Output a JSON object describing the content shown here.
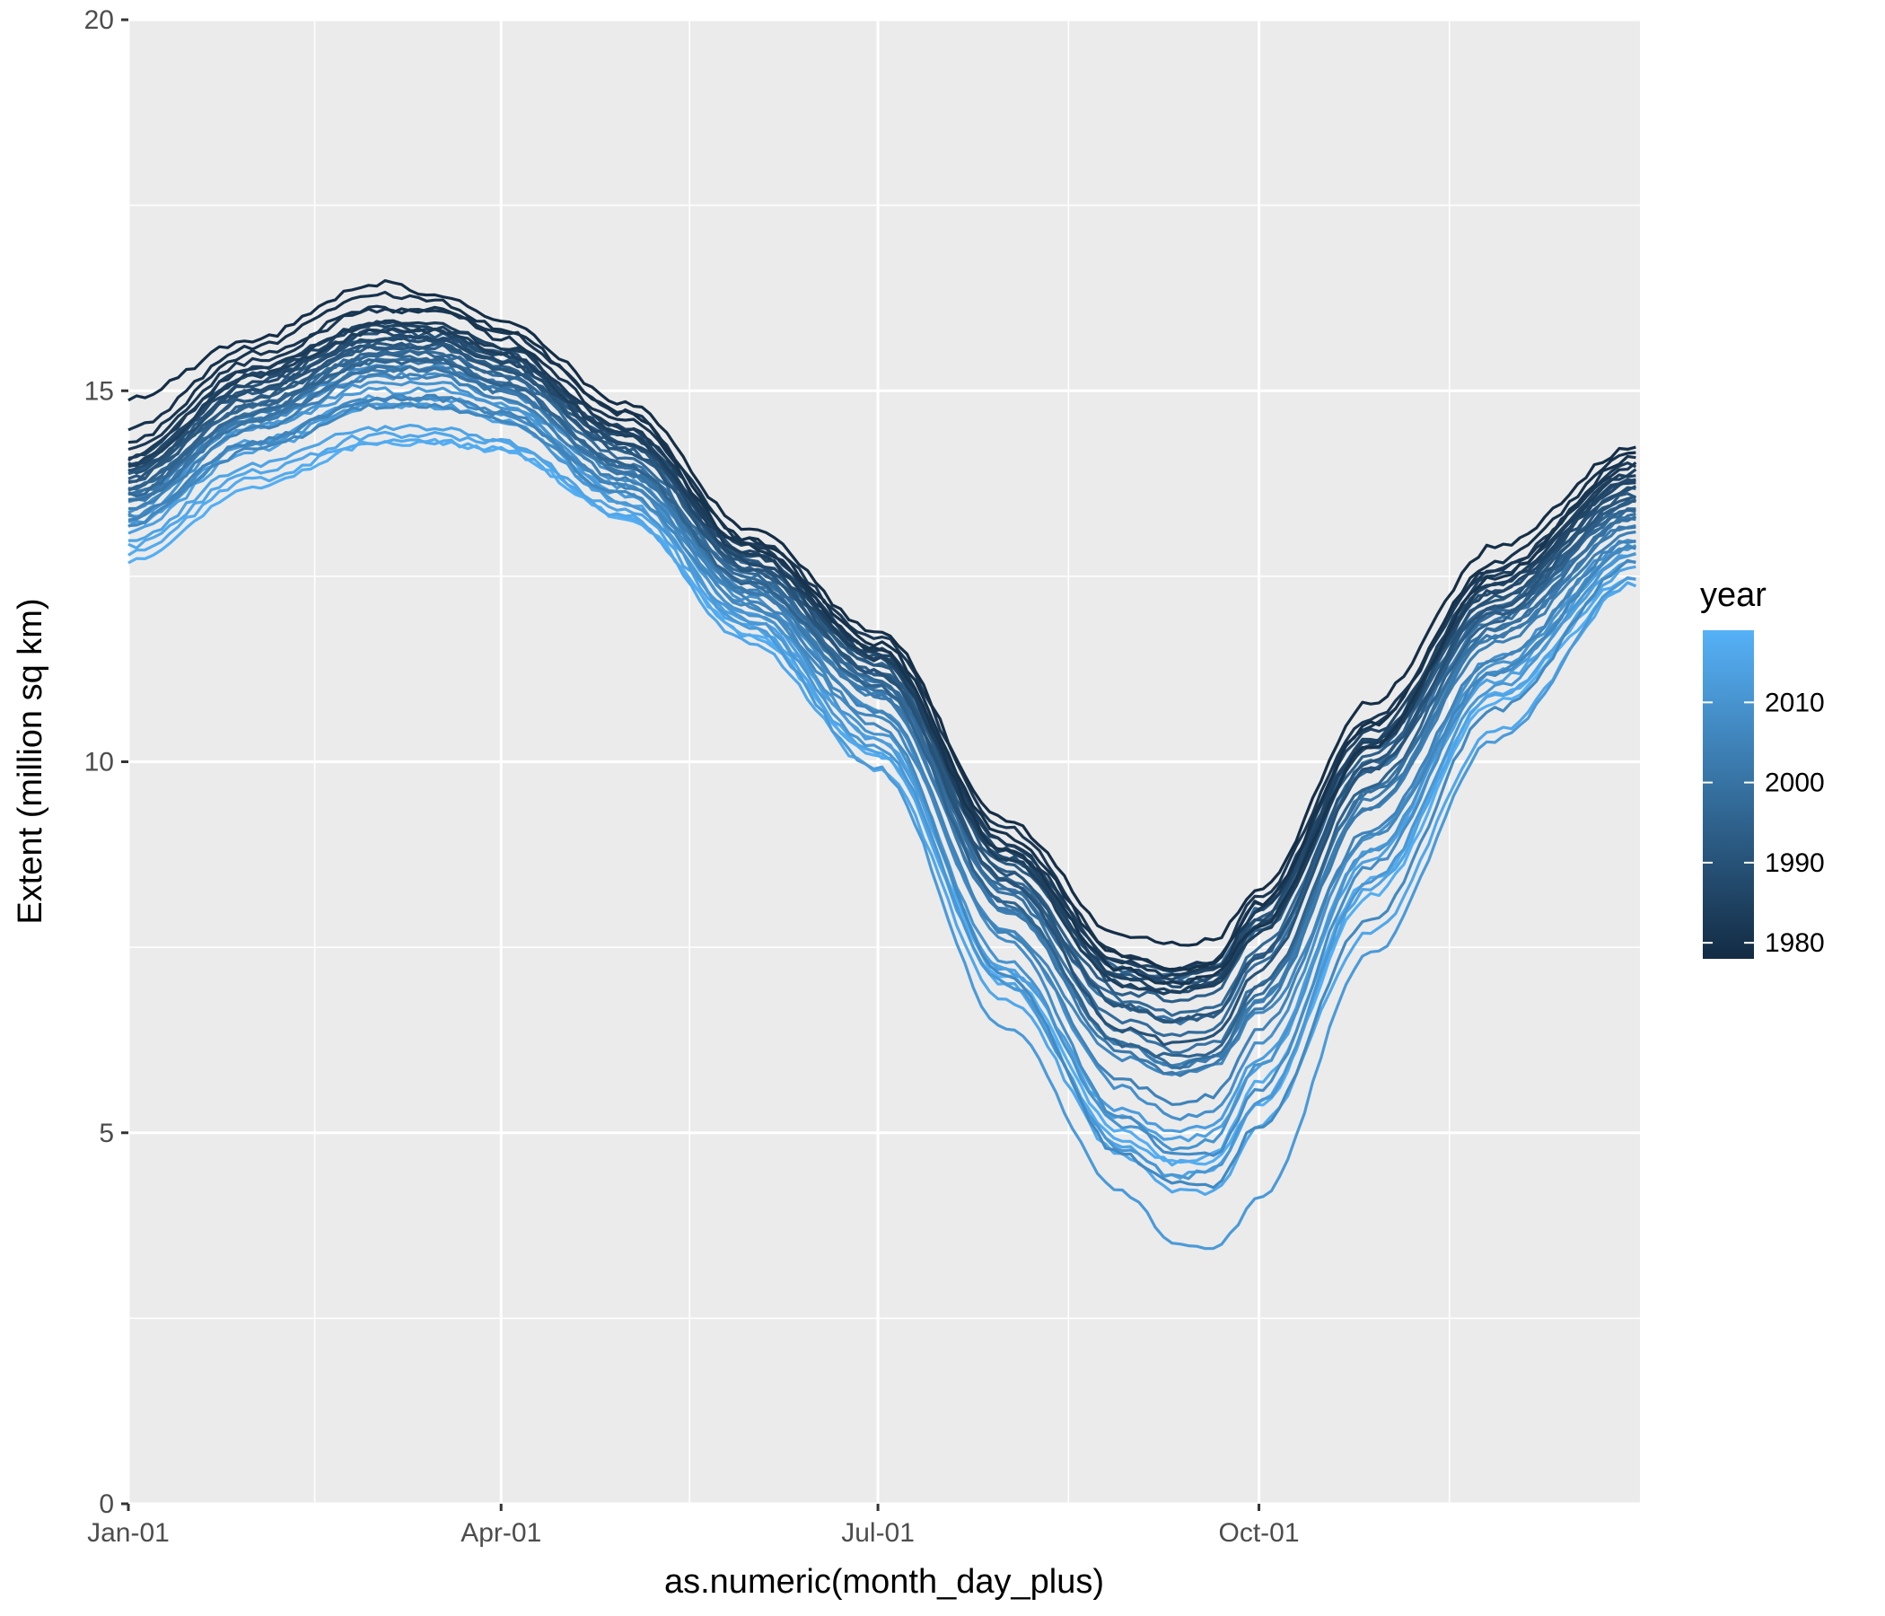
{
  "chart_data": {
    "type": "line",
    "xlabel": "as.numeric(month_day_plus)",
    "ylabel": "Extent (million sq km)",
    "xlim": [
      0,
      365
    ],
    "ylim": [
      0,
      20
    ],
    "x_ticks": [
      {
        "value": 0,
        "label": "Jan-01"
      },
      {
        "value": 90,
        "label": "Apr-01"
      },
      {
        "value": 181,
        "label": "Jul-01"
      },
      {
        "value": 273,
        "label": "Oct-01"
      }
    ],
    "x_minor_ticks": [
      45,
      135.5,
      227,
      319
    ],
    "y_ticks": [
      {
        "value": 0,
        "label": "0"
      },
      {
        "value": 5,
        "label": "5"
      },
      {
        "value": 10,
        "label": "10"
      },
      {
        "value": 15,
        "label": "15"
      },
      {
        "value": 20,
        "label": "20"
      }
    ],
    "y_minor_ticks": [
      2.5,
      7.5,
      12.5,
      17.5
    ],
    "grid": true,
    "legend": {
      "title": "year",
      "position": "right",
      "type": "colorbar",
      "range": [
        1978,
        2019
      ],
      "breaks": [
        {
          "value": 1980,
          "label": "1980"
        },
        {
          "value": 1990,
          "label": "1990"
        },
        {
          "value": 2000,
          "label": "2000"
        },
        {
          "value": 2010,
          "label": "2010"
        }
      ],
      "color_low": "#132B43",
      "color_high": "#56B1F7"
    },
    "colors": {
      "panel_background": "#EBEBEB",
      "grid": "#FFFFFF",
      "tick_text": "#4D4D4D"
    },
    "x_day_points": [
      0,
      30,
      60,
      75,
      90,
      120,
      150,
      181,
      212,
      240,
      253,
      262,
      273,
      300,
      330,
      364
    ],
    "series": [
      {
        "year": 1979,
        "values": [
          14.9,
          15.7,
          16.45,
          16.3,
          15.95,
          14.85,
          13.15,
          11.75,
          9.2,
          7.65,
          7.55,
          7.6,
          8.3,
          10.8,
          12.9,
          14.25
        ]
      },
      {
        "year": 1980,
        "values": [
          14.5,
          15.6,
          16.3,
          16.2,
          15.85,
          14.7,
          13.0,
          11.6,
          9.0,
          7.4,
          7.2,
          7.3,
          8.1,
          10.5,
          12.7,
          14.15
        ]
      },
      {
        "year": 1981,
        "values": [
          14.3,
          15.5,
          16.1,
          16.1,
          15.7,
          14.6,
          12.9,
          11.5,
          8.8,
          7.2,
          7.0,
          7.1,
          7.8,
          10.2,
          12.5,
          14.1
        ]
      },
      {
        "year": 1982,
        "values": [
          14.2,
          15.4,
          16.1,
          16.05,
          15.8,
          14.7,
          13.0,
          11.7,
          9.1,
          7.4,
          7.2,
          7.3,
          8.2,
          10.6,
          12.6,
          14.0
        ]
      },
      {
        "year": 1983,
        "values": [
          14.1,
          15.3,
          15.9,
          15.9,
          15.6,
          14.5,
          12.9,
          11.5,
          8.9,
          7.3,
          7.1,
          7.2,
          8.0,
          10.5,
          12.6,
          14.0
        ]
      },
      {
        "year": 1984,
        "values": [
          14.0,
          15.2,
          15.8,
          15.8,
          15.5,
          14.4,
          12.8,
          11.4,
          8.7,
          7.0,
          6.9,
          7.0,
          7.7,
          10.2,
          12.4,
          13.9
        ]
      },
      {
        "year": 1985,
        "values": [
          14.1,
          15.3,
          15.9,
          15.85,
          15.6,
          14.5,
          12.9,
          11.5,
          8.8,
          7.1,
          6.9,
          7.0,
          7.8,
          10.3,
          12.5,
          13.9
        ]
      },
      {
        "year": 1986,
        "values": [
          14.0,
          15.2,
          15.9,
          15.8,
          15.5,
          14.4,
          12.8,
          11.45,
          8.9,
          7.3,
          7.2,
          7.3,
          8.1,
          10.4,
          12.4,
          13.8
        ]
      },
      {
        "year": 1987,
        "values": [
          14.0,
          15.1,
          15.8,
          15.7,
          15.4,
          14.3,
          12.7,
          11.4,
          8.8,
          7.2,
          7.1,
          7.2,
          8.0,
          10.3,
          12.3,
          13.8
        ]
      },
      {
        "year": 1988,
        "values": [
          14.0,
          15.2,
          15.7,
          15.7,
          15.4,
          14.4,
          12.8,
          11.4,
          8.7,
          7.1,
          7.0,
          7.1,
          7.9,
          10.3,
          12.4,
          13.8
        ]
      },
      {
        "year": 1989,
        "values": [
          13.9,
          15.0,
          15.7,
          15.7,
          15.5,
          14.4,
          12.8,
          11.4,
          8.7,
          7.0,
          6.9,
          7.0,
          7.8,
          10.2,
          12.3,
          13.7
        ]
      },
      {
        "year": 1990,
        "values": [
          13.9,
          15.1,
          15.8,
          15.75,
          15.5,
          14.3,
          12.7,
          11.2,
          8.4,
          6.4,
          6.2,
          6.3,
          7.2,
          9.9,
          12.2,
          13.7
        ]
      },
      {
        "year": 1991,
        "values": [
          13.8,
          15.0,
          15.6,
          15.6,
          15.3,
          14.2,
          12.6,
          11.2,
          8.5,
          6.7,
          6.5,
          6.6,
          7.4,
          10.0,
          12.1,
          13.6
        ]
      },
      {
        "year": 1992,
        "values": [
          13.8,
          14.9,
          15.6,
          15.6,
          15.3,
          14.3,
          12.7,
          11.3,
          8.6,
          7.1,
          7.0,
          7.1,
          7.9,
          10.2,
          12.2,
          13.6
        ]
      },
      {
        "year": 1993,
        "values": [
          13.9,
          15.0,
          15.7,
          15.7,
          15.4,
          14.3,
          12.6,
          11.2,
          8.4,
          6.7,
          6.5,
          6.6,
          7.4,
          9.9,
          12.0,
          13.5
        ]
      },
      {
        "year": 1994,
        "values": [
          13.8,
          14.9,
          15.6,
          15.6,
          15.3,
          14.2,
          12.6,
          11.2,
          8.5,
          6.9,
          6.8,
          6.9,
          7.7,
          10.1,
          12.1,
          13.5
        ]
      },
      {
        "year": 1995,
        "values": [
          13.7,
          14.8,
          15.4,
          15.4,
          15.1,
          14.0,
          12.4,
          11.0,
          8.1,
          6.2,
          6.0,
          6.1,
          7.0,
          9.7,
          11.9,
          13.5
        ]
      },
      {
        "year": 1996,
        "values": [
          13.7,
          14.8,
          15.5,
          15.5,
          15.2,
          14.2,
          12.7,
          11.3,
          8.7,
          7.2,
          7.1,
          7.2,
          8.0,
          10.2,
          12.1,
          13.4
        ]
      },
      {
        "year": 1997,
        "values": [
          13.6,
          14.7,
          15.5,
          15.4,
          15.1,
          14.0,
          12.5,
          11.1,
          8.4,
          6.8,
          6.6,
          6.7,
          7.5,
          10.0,
          12.0,
          13.4
        ]
      },
      {
        "year": 1998,
        "values": [
          13.7,
          14.8,
          15.5,
          15.5,
          15.2,
          14.1,
          12.5,
          11.1,
          8.3,
          6.5,
          6.3,
          6.4,
          7.3,
          9.9,
          12.0,
          13.4
        ]
      },
      {
        "year": 1999,
        "values": [
          13.6,
          14.7,
          15.4,
          15.4,
          15.1,
          14.0,
          12.4,
          11.0,
          8.1,
          6.2,
          5.9,
          6.0,
          6.9,
          9.6,
          11.8,
          13.3
        ]
      },
      {
        "year": 2000,
        "values": [
          13.5,
          14.6,
          15.3,
          15.3,
          15.0,
          13.9,
          12.4,
          11.0,
          8.2,
          6.4,
          6.1,
          6.2,
          7.0,
          9.6,
          11.8,
          13.3
        ]
      },
      {
        "year": 2001,
        "values": [
          13.6,
          14.7,
          15.4,
          15.4,
          15.1,
          14.0,
          12.5,
          11.1,
          8.3,
          6.7,
          6.5,
          6.6,
          7.4,
          9.9,
          11.9,
          13.3
        ]
      },
      {
        "year": 2002,
        "values": [
          13.5,
          14.6,
          15.3,
          15.3,
          15.0,
          13.9,
          12.3,
          10.9,
          8.0,
          6.1,
          5.8,
          5.9,
          6.7,
          9.4,
          11.7,
          13.2
        ]
      },
      {
        "year": 2003,
        "values": [
          13.5,
          14.6,
          15.3,
          15.3,
          15.0,
          13.9,
          12.3,
          10.9,
          8.0,
          6.2,
          5.9,
          6.0,
          6.8,
          9.5,
          11.7,
          13.2
        ]
      },
      {
        "year": 2004,
        "values": [
          13.4,
          14.5,
          15.2,
          15.2,
          14.9,
          13.8,
          12.3,
          10.9,
          8.0,
          6.2,
          5.9,
          6.0,
          6.8,
          9.4,
          11.6,
          13.1
        ]
      },
      {
        "year": 2005,
        "values": [
          13.3,
          14.3,
          14.9,
          14.9,
          14.7,
          13.7,
          12.2,
          10.7,
          7.7,
          5.7,
          5.4,
          5.5,
          6.4,
          9.1,
          11.4,
          13.0
        ]
      },
      {
        "year": 2006,
        "values": [
          13.2,
          14.2,
          14.8,
          14.8,
          14.6,
          13.6,
          12.1,
          10.6,
          7.7,
          6.0,
          5.8,
          5.9,
          6.6,
          9.0,
          11.2,
          12.9
        ]
      },
      {
        "year": 2007,
        "values": [
          13.3,
          14.3,
          14.9,
          14.9,
          14.7,
          13.7,
          12.1,
          10.5,
          7.1,
          4.7,
          4.3,
          4.3,
          5.1,
          7.9,
          10.7,
          12.7
        ]
      },
      {
        "year": 2008,
        "values": [
          13.5,
          14.7,
          15.3,
          15.3,
          15.0,
          13.9,
          12.3,
          10.7,
          7.6,
          5.2,
          4.7,
          4.7,
          5.6,
          8.6,
          11.2,
          12.9
        ]
      },
      {
        "year": 2009,
        "values": [
          13.4,
          14.6,
          15.2,
          15.2,
          14.9,
          13.8,
          12.2,
          10.7,
          7.7,
          5.6,
          5.2,
          5.3,
          6.2,
          9.0,
          11.4,
          13.0
        ]
      },
      {
        "year": 2010,
        "values": [
          13.3,
          14.5,
          15.1,
          15.1,
          14.8,
          13.7,
          12.0,
          10.4,
          7.3,
          5.1,
          4.8,
          4.9,
          5.9,
          8.8,
          11.3,
          12.9
        ]
      },
      {
        "year": 2011,
        "values": [
          13.2,
          14.3,
          14.8,
          14.8,
          14.6,
          13.5,
          11.9,
          10.2,
          7.0,
          4.8,
          4.4,
          4.5,
          5.4,
          8.4,
          11.0,
          12.8
        ]
      },
      {
        "year": 2012,
        "values": [
          13.4,
          14.5,
          15.0,
          15.0,
          14.8,
          13.6,
          11.8,
          9.9,
          6.4,
          4.2,
          3.5,
          3.4,
          4.1,
          7.4,
          10.3,
          12.5
        ]
      },
      {
        "year": 2013,
        "values": [
          13.2,
          14.3,
          14.9,
          14.9,
          14.7,
          13.6,
          12.0,
          10.3,
          7.2,
          5.3,
          5.0,
          5.1,
          6.0,
          8.8,
          11.2,
          12.8
        ]
      },
      {
        "year": 2014,
        "values": [
          13.1,
          14.2,
          14.8,
          14.8,
          14.6,
          13.5,
          11.9,
          10.3,
          7.2,
          5.2,
          4.9,
          5.0,
          5.9,
          8.7,
          11.1,
          12.7
        ]
      },
      {
        "year": 2015,
        "values": [
          13.0,
          14.0,
          14.5,
          14.5,
          14.3,
          13.4,
          11.8,
          10.1,
          7.0,
          4.8,
          4.4,
          4.5,
          5.4,
          8.3,
          10.9,
          12.6
        ]
      },
      {
        "year": 2016,
        "values": [
          12.9,
          13.9,
          14.4,
          14.4,
          14.3,
          13.3,
          11.6,
          9.9,
          6.8,
          4.7,
          4.2,
          4.2,
          5.1,
          7.7,
          10.4,
          12.4
        ]
      },
      {
        "year": 2017,
        "values": [
          12.8,
          13.8,
          14.3,
          14.3,
          14.2,
          13.3,
          11.7,
          10.1,
          7.0,
          4.9,
          4.6,
          4.7,
          5.7,
          8.4,
          10.9,
          12.5
        ]
      },
      {
        "year": 2018,
        "values": [
          12.7,
          13.7,
          14.3,
          14.3,
          14.2,
          13.3,
          11.7,
          10.1,
          7.1,
          5.0,
          4.6,
          4.6,
          5.4,
          8.2,
          10.8,
          12.4
        ]
      }
    ]
  }
}
